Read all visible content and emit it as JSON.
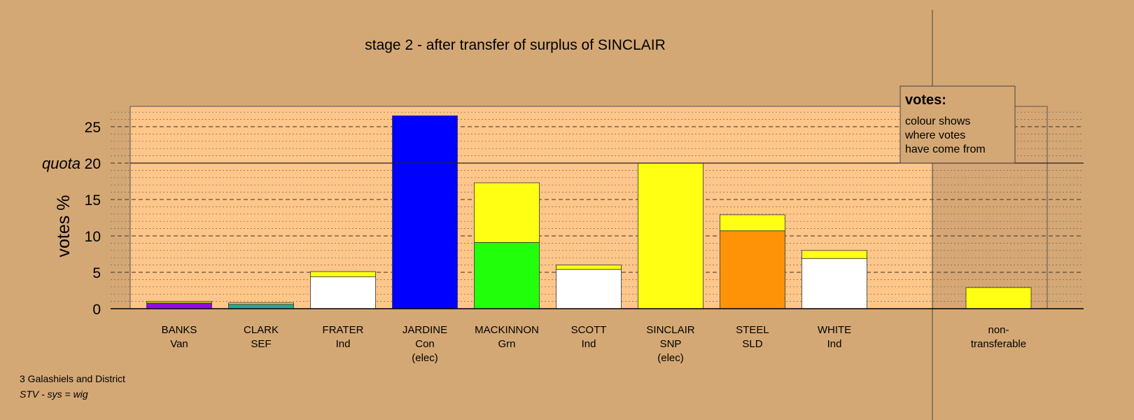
{
  "chart_data": {
    "type": "bar",
    "stacked": true,
    "title": "stage 2 - after transfer of surplus of SINCLAIR",
    "ylabel": "votes %",
    "ylim": [
      0,
      27.5
    ],
    "yticks": [
      0,
      5,
      10,
      15,
      20,
      25
    ],
    "quota": {
      "label": "quota",
      "value": 20
    },
    "grid": true,
    "categories": [
      {
        "name": "BANKS",
        "party": "Van",
        "note": ""
      },
      {
        "name": "CLARK",
        "party": "SEF",
        "note": ""
      },
      {
        "name": "FRATER",
        "party": "Ind",
        "note": ""
      },
      {
        "name": "JARDINE",
        "party": "Con",
        "note": "(elec)"
      },
      {
        "name": "MACKINNON",
        "party": "Grn",
        "note": ""
      },
      {
        "name": "SCOTT",
        "party": "Ind",
        "note": ""
      },
      {
        "name": "SINCLAIR",
        "party": "SNP",
        "note": "(elec)"
      },
      {
        "name": "STEEL",
        "party": "SLD",
        "note": ""
      },
      {
        "name": "WHITE",
        "party": "Ind",
        "note": ""
      }
    ],
    "series": [
      {
        "color": "#8B10E0",
        "values": [
          0.8,
          0,
          0,
          0,
          0,
          0,
          0,
          0,
          0
        ]
      },
      {
        "color": "#2AA89A",
        "values": [
          0,
          0.6,
          0,
          0,
          0,
          0,
          0,
          0,
          0
        ]
      },
      {
        "color": "#FFFFFF",
        "values": [
          0,
          0,
          4.4,
          0,
          0,
          5.4,
          0,
          0,
          6.9
        ]
      },
      {
        "color": "#0000FF",
        "values": [
          0,
          0,
          0,
          26.5,
          0,
          0,
          0,
          0,
          0
        ]
      },
      {
        "color": "#22FF0A",
        "values": [
          0,
          0,
          0,
          0,
          9.1,
          0,
          0,
          0,
          0
        ]
      },
      {
        "color": "#FF9308",
        "values": [
          0,
          0,
          0,
          0,
          0,
          0,
          0,
          10.7,
          0
        ]
      },
      {
        "color": "#FFFF14",
        "values": [
          0.2,
          0.2,
          0.7,
          0,
          8.2,
          0.6,
          20.0,
          2.2,
          1.1
        ]
      }
    ],
    "nontransferable": {
      "label_line1": "non-",
      "label_line2": "transferable",
      "value": 2.9,
      "color": "#FFFF14"
    },
    "legend": {
      "position": "top-right",
      "title": "votes:",
      "lines": [
        "colour shows",
        "where votes",
        "have come from"
      ]
    }
  },
  "footer": {
    "line1": "3 Galashiels and District",
    "line2": "STV - sys = wig"
  },
  "colors": {
    "background": "#D4A875",
    "plot_area": "#FFC68A",
    "nontransferable_area": "#D6A774"
  }
}
